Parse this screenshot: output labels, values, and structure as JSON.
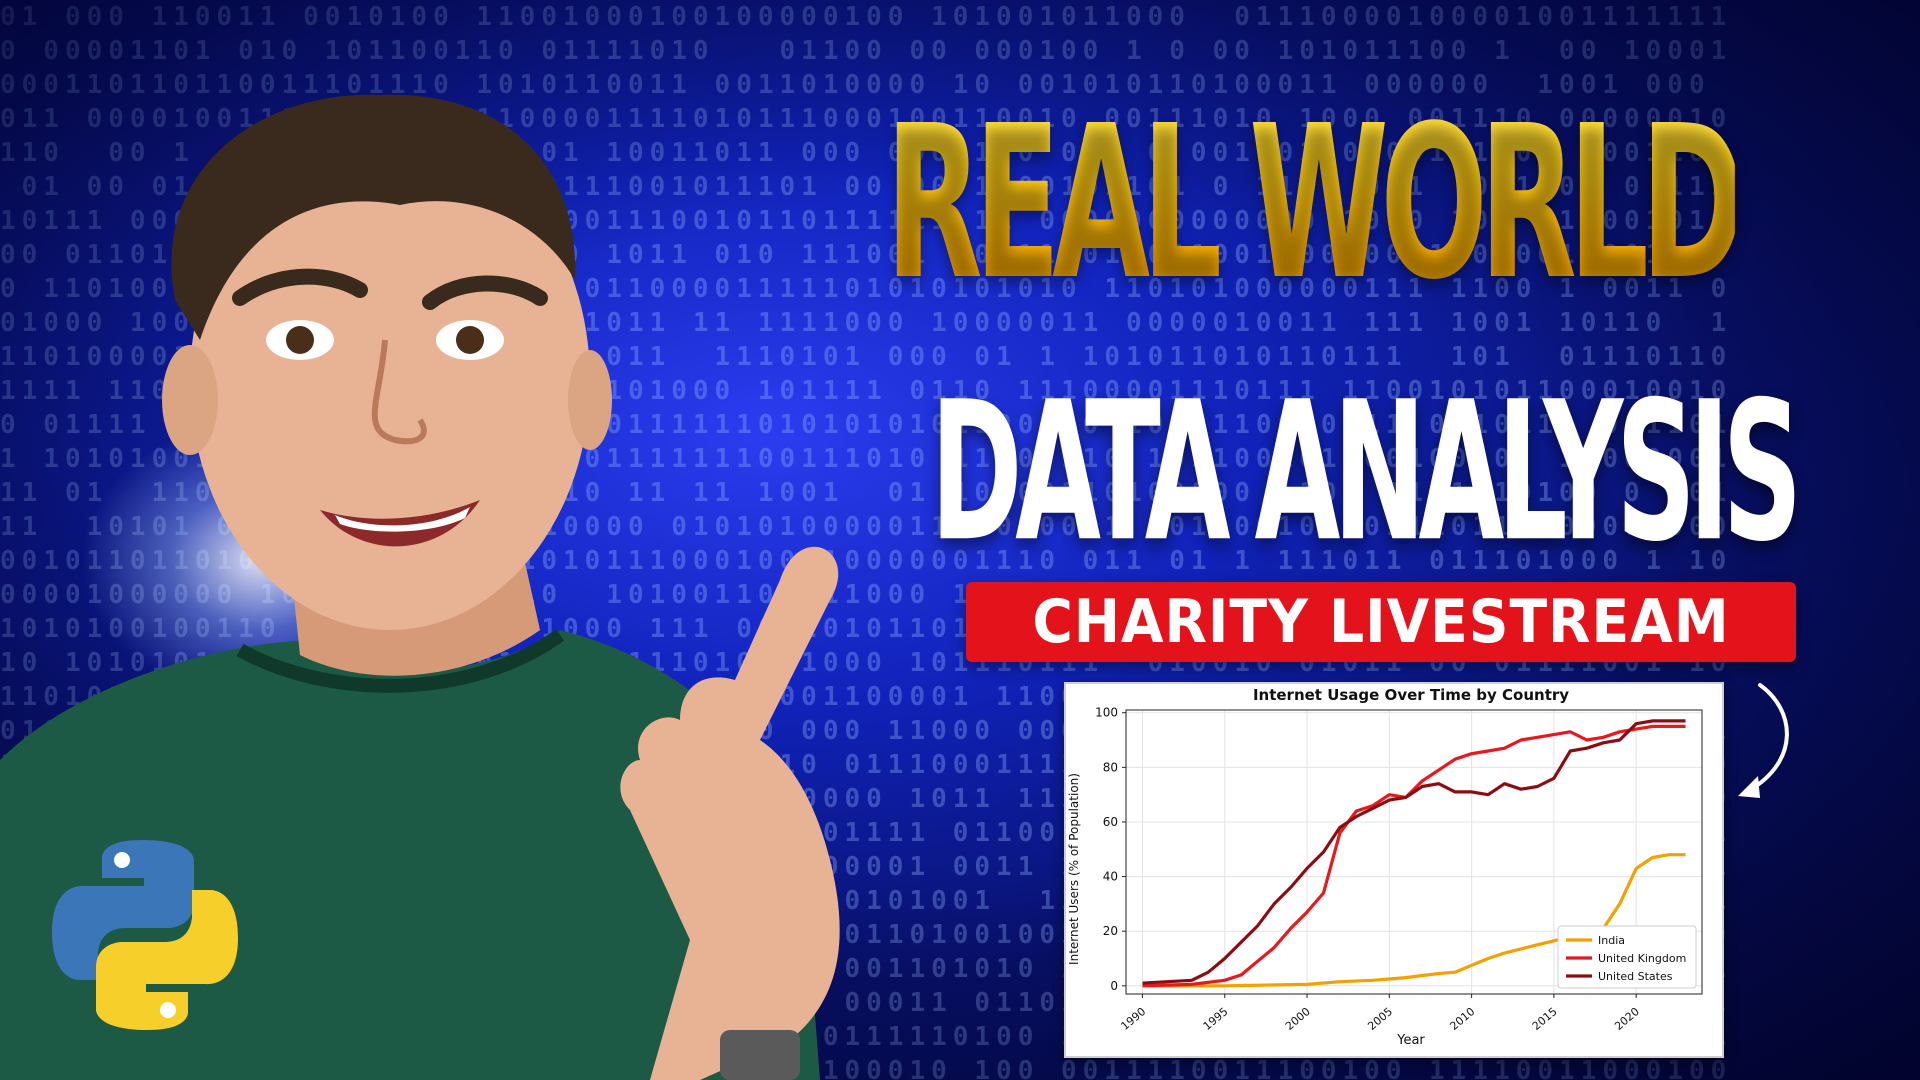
{
  "headline": {
    "line1": "REAL WORLD",
    "line2": "DATA ANALYSIS",
    "badge": "CHARITY LIVESTREAM"
  },
  "colors": {
    "headline_gold": "#ffd21a",
    "badge_red": "#e4121a",
    "background_blue": "#1022b8",
    "shirt_green": "#1d5a46"
  },
  "icons": {
    "python_logo": "python-logo-icon",
    "arrow": "curved-arrow-icon"
  },
  "chart_data": {
    "type": "line",
    "title": "Internet Usage Over Time by Country",
    "xlabel": "Year",
    "ylabel": "Internet Users (% of Population)",
    "xlim": [
      1989,
      2024
    ],
    "ylim": [
      -3,
      101
    ],
    "xticks": [
      1990,
      1995,
      2000,
      2005,
      2010,
      2015,
      2020
    ],
    "yticks": [
      0,
      20,
      40,
      60,
      80,
      100
    ],
    "grid": true,
    "legend": "bottom-right",
    "series": [
      {
        "name": "India",
        "color": "#f5a000",
        "x": [
          1990,
          1995,
          2000,
          2002,
          2004,
          2005,
          2006,
          2008,
          2009,
          2010,
          2011,
          2012,
          2013,
          2014,
          2015,
          2016,
          2017,
          2018,
          2019,
          2020,
          2021,
          2022,
          2023
        ],
        "y": [
          0,
          0,
          0.5,
          1.5,
          2,
          2.5,
          3,
          4.5,
          5,
          7.5,
          10,
          12,
          13.5,
          15,
          16.5,
          18,
          20,
          21,
          30,
          43,
          47,
          48,
          48
        ]
      },
      {
        "name": "United Kingdom",
        "color": "#e8181c",
        "x": [
          1990,
          1993,
          1995,
          1996,
          1997,
          1998,
          1999,
          2000,
          2001,
          2002,
          2003,
          2004,
          2005,
          2006,
          2007,
          2008,
          2009,
          2010,
          2011,
          2012,
          2013,
          2014,
          2015,
          2016,
          2017,
          2018,
          2019,
          2020,
          2021,
          2022,
          2023
        ],
        "y": [
          0,
          0.5,
          2,
          4,
          9,
          14,
          21,
          27,
          34,
          56,
          64,
          66,
          70,
          69,
          75,
          79,
          83,
          85,
          86,
          87,
          90,
          91,
          92,
          93,
          90,
          91,
          93,
          94,
          95,
          95,
          95
        ]
      },
      {
        "name": "United States",
        "color": "#8b0d12",
        "x": [
          1990,
          1993,
          1994,
          1995,
          1996,
          1997,
          1998,
          1999,
          2000,
          2001,
          2002,
          2003,
          2004,
          2005,
          2006,
          2007,
          2008,
          2009,
          2010,
          2011,
          2012,
          2013,
          2014,
          2015,
          2016,
          2017,
          2018,
          2019,
          2020,
          2021,
          2022,
          2023
        ],
        "y": [
          1,
          2,
          5,
          10,
          16,
          22,
          30,
          36,
          43,
          49,
          58,
          62,
          65,
          68,
          69,
          73,
          74,
          71,
          71,
          70,
          74,
          72,
          73,
          76,
          86,
          87,
          89,
          90,
          96,
          97,
          97,
          97
        ]
      }
    ]
  }
}
